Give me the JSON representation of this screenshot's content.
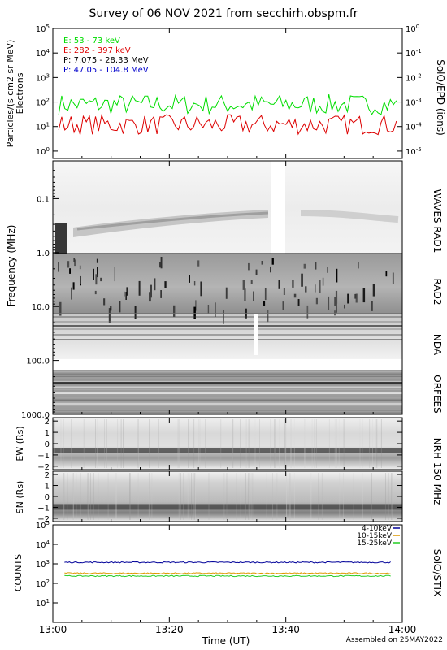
{
  "title": "Survey of 06 NOV 2021 from secchirh.obspm.fr",
  "footer": "Assembled on 25MAY2022",
  "time_axis": {
    "label": "Time (UT)",
    "ticks": [
      "13:00",
      "13:20",
      "13:40",
      "14:00"
    ],
    "range_minutes": [
      0,
      60
    ]
  },
  "colors": {
    "e_low": "#00dd00",
    "e_high": "#dd0000",
    "p_low": "#000000",
    "p_high": "#0000cc",
    "stix_4_10": "#000099",
    "stix_10_15": "#dd9900",
    "stix_15_25": "#22cc22"
  },
  "panel_labels": {
    "epd": "SolO/EPD (ions)",
    "waves": "WAVES RAD1",
    "rad2": "RAD2",
    "nda": "NDA",
    "orfees": "ORFEES",
    "nrh": "NRH 150 MHz",
    "stix": "SolO/STIX"
  },
  "y_labels": {
    "epd_line1": "Particles/(s cm2 sr MeV)",
    "epd_line2": "Electrons",
    "frequency": "Frequency (MHz)",
    "ew": "EW (Rs)",
    "sn": "SN (Rs)",
    "counts": "COUNTS"
  },
  "chart_data": [
    {
      "type": "line",
      "panel": "SolO/EPD",
      "ylabel": "Particles/(s cm2 sr MeV)",
      "yscale": "log",
      "ylim": [
        0.5,
        100000
      ],
      "left_ticks": [
        "10^0",
        "10^1",
        "10^2",
        "10^3",
        "10^4",
        "10^5"
      ],
      "right_ticks": [
        "10^-5",
        "10^-4",
        "10^-3",
        "10^-2",
        "10^-1",
        "10^0"
      ],
      "legend": "top-left",
      "series": [
        {
          "name": "E: 53 - 73 keV",
          "typical": 80,
          "min": 30,
          "max": 250
        },
        {
          "name": "E: 282 - 397 keV",
          "typical": 12,
          "min": 3,
          "max": 30
        },
        {
          "name": "P: 7.075 - 28.33 MeV",
          "typical": null
        },
        {
          "name": "P: 47.05 - 104.8 MeV",
          "typical": null
        }
      ]
    },
    {
      "type": "heatmap",
      "panel": "WAVES RAD1 / RAD2 / NDA / ORFEES",
      "ylabel": "Frequency (MHz)",
      "yscale": "log",
      "ylim": [
        0.02,
        1000
      ],
      "y_ticks": [
        "0.1",
        "1.0",
        "10.0",
        "100.0",
        "1000.0"
      ],
      "features": [
        {
          "text": "drifting emission band",
          "from_minutes": 4,
          "to_minutes": 58,
          "freq_start_mhz": 0.35,
          "freq_end_mhz": 0.15
        },
        {
          "text": "data gap",
          "from_minutes": 37.5,
          "to_minutes": 40,
          "freq_start_mhz": 0.02,
          "freq_end_mhz": 1.0
        }
      ]
    },
    {
      "type": "heatmap",
      "panel": "NRH 150 MHz EW",
      "ylabel": "EW (Rs)",
      "ylim": [
        -2.3,
        2.3
      ],
      "y_ticks": [
        "2",
        "1",
        "0",
        "-1",
        "-2"
      ]
    },
    {
      "type": "heatmap",
      "panel": "NRH 150 MHz SN",
      "ylabel": "SN (Rs)",
      "ylim": [
        -2.3,
        2.3
      ],
      "y_ticks": [
        "2",
        "1",
        "0",
        "-1",
        "-2"
      ]
    },
    {
      "type": "line",
      "panel": "SolO/STIX",
      "ylabel": "COUNTS",
      "yscale": "log",
      "ylim": [
        1,
        100000
      ],
      "y_ticks": [
        "10^1",
        "10^2",
        "10^3",
        "10^4",
        "10^5"
      ],
      "legend": "top-right",
      "series": [
        {
          "name": "4-10keV",
          "typical": 1200
        },
        {
          "name": "10-15keV",
          "typical": 330
        },
        {
          "name": "15-25keV",
          "typical": 240
        }
      ]
    }
  ]
}
